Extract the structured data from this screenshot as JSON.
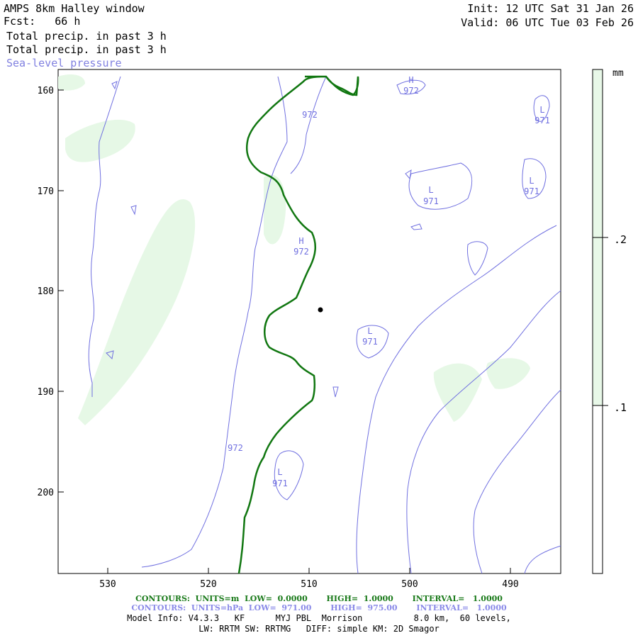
{
  "header": {
    "model_title": "AMPS 8km Halley window",
    "forecast": "Fcst:   66 h",
    "field1": "Total precip. in past 3 h",
    "field2": "Total precip. in past 3 h",
    "field3": "Sea-level pressure",
    "init": "Init: 12 UTC Sat 31 Jan 26",
    "valid": "Valid: 06 UTC Tue 03 Feb 26"
  },
  "axes": {
    "y_ticks": [
      "160",
      "170",
      "180",
      "190",
      "200"
    ],
    "x_ticks": [
      "530",
      "520",
      "510",
      "500",
      "490"
    ]
  },
  "colorbar": {
    "unit": "mm",
    "labels": [
      ".2",
      ".1"
    ],
    "fill_color": "#e8f8e8"
  },
  "contour_labels": [
    {
      "type": "H",
      "value": "972"
    },
    {
      "type": "",
      "value": "972"
    },
    {
      "type": "L",
      "value": "971"
    },
    {
      "type": "L",
      "value": "971"
    },
    {
      "type": "L",
      "value": "971"
    },
    {
      "type": "H",
      "value": "972"
    },
    {
      "type": "L",
      "value": "971"
    },
    {
      "type": "",
      "value": "972"
    },
    {
      "type": "L",
      "value": "971"
    }
  ],
  "footer": {
    "green_line": "CONTOURS:  UNITS=m  LOW=  0.0000       HIGH=  1.0000       INTERVAL=   1.0000",
    "blue_line": "CONTOURS:  UNITS=hPa  LOW=  971.00       HIGH=  975.00       INTERVAL=   1.0000",
    "model_info": "Model Info: V4.3.3   KF      MYJ PBL  Morrison          8.0 km,  60 levels,",
    "physics": "LW: RRTM SW: RRTMG   DIFF: simple KM: 2D Smagor"
  },
  "colors": {
    "slp_contour": "#7070e0",
    "height_contour": "#117711",
    "precip_fill": "#e6f8e6"
  }
}
